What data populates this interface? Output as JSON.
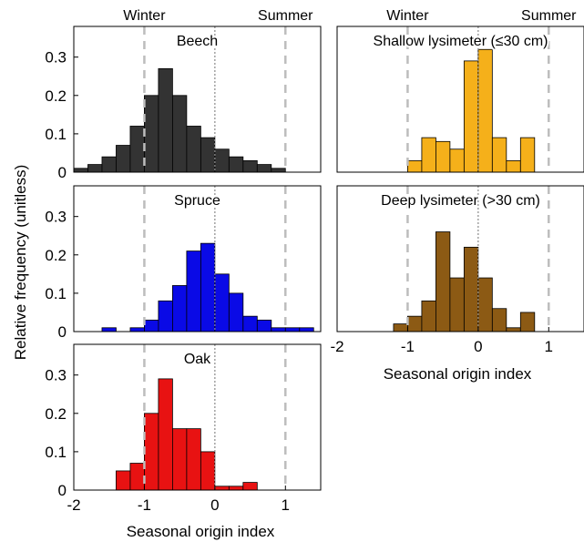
{
  "figure": {
    "ylabel": "Relative frequency (unitless)",
    "xlabel": "Seasonal origin index",
    "top_labels": [
      "Winter",
      "Summer"
    ]
  },
  "colors": {
    "beech": "#333333",
    "shallow": "#F5B01A",
    "spruce": "#0A0AE6",
    "deep": "#8C5A14",
    "oak": "#E81212",
    "reference_dashed": "#BDBDBD",
    "reference_dotted": "#8A8A8A"
  },
  "chart_data": [
    {
      "type": "bar",
      "title": "Beech",
      "color": "beech",
      "bin_edges": [
        -2,
        -1.8,
        -1.6,
        -1.4,
        -1.2,
        -1.0,
        -0.8,
        -0.6,
        -0.4,
        -0.2,
        0,
        0.2,
        0.4,
        0.6,
        0.8,
        1.0,
        1.2,
        1.4
      ],
      "values": [
        0.01,
        0.02,
        0.04,
        0.07,
        0.12,
        0.2,
        0.27,
        0.2,
        0.12,
        0.09,
        0.06,
        0.04,
        0.03,
        0.02,
        0.01,
        0,
        0
      ],
      "xlim": [
        -2,
        1.5
      ],
      "ylim": [
        0,
        0.38
      ],
      "yticks": [
        0,
        0.1,
        0.2,
        0.3
      ],
      "xticks": [],
      "reference_lines": {
        "dashed": [
          -1,
          1
        ],
        "dotted": [
          0
        ]
      },
      "top_labels": true
    },
    {
      "type": "bar",
      "title": "Shallow lysimeter (≤30 cm)",
      "color": "shallow",
      "bin_edges": [
        -1.2,
        -1.0,
        -0.8,
        -0.6,
        -0.4,
        -0.2,
        0,
        0.2,
        0.4,
        0.6,
        0.8
      ],
      "values": [
        0,
        0.03,
        0.09,
        0.08,
        0.06,
        0.29,
        0.32,
        0.09,
        0.03,
        0.09
      ],
      "xlim": [
        -2,
        1.5
      ],
      "ylim": [
        0,
        0.38
      ],
      "yticks": [],
      "xticks": [],
      "reference_lines": {
        "dashed": [
          -1,
          1
        ],
        "dotted": [
          0
        ]
      },
      "top_labels": true
    },
    {
      "type": "bar",
      "title": "Spruce",
      "color": "spruce",
      "bin_edges": [
        -1.6,
        -1.4,
        -1.2,
        -1.0,
        -0.8,
        -0.6,
        -0.4,
        -0.2,
        0,
        0.2,
        0.4,
        0.6,
        0.8,
        1.0,
        1.2,
        1.4
      ],
      "values": [
        0.01,
        0,
        0.01,
        0.03,
        0.08,
        0.12,
        0.21,
        0.23,
        0.15,
        0.1,
        0.04,
        0.03,
        0.01,
        0.01,
        0.01
      ],
      "xlim": [
        -2,
        1.5
      ],
      "ylim": [
        0,
        0.38
      ],
      "yticks": [
        0,
        0.1,
        0.2,
        0.3
      ],
      "xticks": [],
      "reference_lines": {
        "dashed": [
          -1,
          1
        ],
        "dotted": [
          0
        ]
      },
      "top_labels": false
    },
    {
      "type": "bar",
      "title": "Deep lysimeter (>30 cm)",
      "color": "deep",
      "bin_edges": [
        -1.2,
        -1.0,
        -0.8,
        -0.6,
        -0.4,
        -0.2,
        0,
        0.2,
        0.4,
        0.6,
        0.8
      ],
      "values": [
        0.02,
        0.04,
        0.08,
        0.26,
        0.14,
        0.22,
        0.14,
        0.06,
        0.01,
        0.05
      ],
      "xlim": [
        -2,
        1.5
      ],
      "ylim": [
        0,
        0.38
      ],
      "yticks": [],
      "xticks": [
        -2,
        -1,
        0,
        1
      ],
      "reference_lines": {
        "dashed": [
          -1,
          1
        ],
        "dotted": [
          0
        ]
      },
      "top_labels": false
    },
    {
      "type": "bar",
      "title": "Oak",
      "color": "oak",
      "bin_edges": [
        -1.4,
        -1.2,
        -1.0,
        -0.8,
        -0.6,
        -0.4,
        -0.2,
        0,
        0.2,
        0.4,
        0.6
      ],
      "values": [
        0.05,
        0.07,
        0.2,
        0.29,
        0.16,
        0.16,
        0.1,
        0.01,
        0.01,
        0.02
      ],
      "xlim": [
        -2,
        1.5
      ],
      "ylim": [
        0,
        0.38
      ],
      "yticks": [
        0,
        0.1,
        0.2,
        0.3
      ],
      "xticks": [
        -2,
        -1,
        0,
        1
      ],
      "reference_lines": {
        "dashed": [
          -1,
          1
        ],
        "dotted": [
          0
        ]
      },
      "top_labels": false
    }
  ]
}
